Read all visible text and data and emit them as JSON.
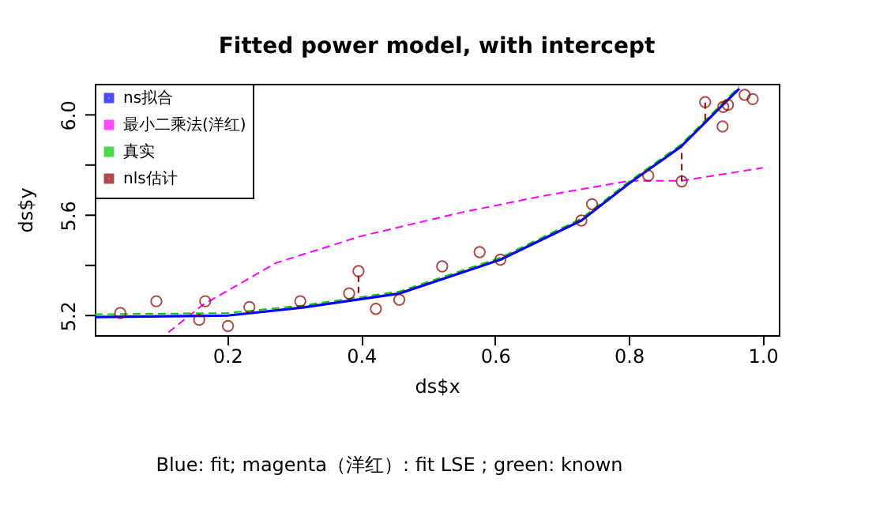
{
  "chart_data": {
    "type": "line",
    "title": "Fitted power model, with intercept",
    "xlabel": "ds$x",
    "ylabel": "ds$y",
    "annotations": [
      "Blue: fit; magenta（洋红）: fit LSE ; green: known"
    ],
    "xlim": [
      0.002,
      1.024
    ],
    "ylim": [
      5.122,
      6.124
    ],
    "xticks": [
      0.2,
      0.4,
      0.6,
      0.8,
      "1.0"
    ],
    "yticks": [
      5.2,
      {
        "value": 5.4,
        "label": null
      },
      5.6,
      {
        "value": 5.8,
        "label": null
      },
      "6.0"
    ],
    "grid": false,
    "legend": "top left",
    "series": [
      {
        "name": "ns拟合",
        "line_style": "solid",
        "color": "#0000ff",
        "x": [
          0.002,
          0.2,
          0.312,
          0.457,
          0.608,
          0.729,
          0.8,
          0.878,
          0.941,
          0.965
        ],
        "values": [
          5.194,
          5.2,
          5.232,
          5.288,
          5.423,
          5.579,
          5.726,
          5.874,
          6.042,
          6.105
        ]
      },
      {
        "name": "最小二乘法(洋红)",
        "line_style": "dashed",
        "color": "#ff00ff",
        "x": [
          0.112,
          0.163,
          0.273,
          0.399,
          0.548,
          0.666,
          0.8,
          0.878,
          1.0
        ],
        "values": [
          5.133,
          5.242,
          5.41,
          5.516,
          5.61,
          5.674,
          5.737,
          5.737,
          5.789
        ]
      },
      {
        "name": "真实",
        "line_style": "dashed",
        "color": "#00cc00",
        "x": [
          0.002,
          0.2,
          0.312,
          0.457,
          0.608,
          0.729,
          0.8,
          0.878,
          0.941,
          0.965
        ],
        "values": [
          5.205,
          5.21,
          5.24,
          5.296,
          5.431,
          5.587,
          5.734,
          5.882,
          6.05,
          6.113
        ]
      },
      {
        "name": "nls估计",
        "type": "scatter",
        "marker": "circle",
        "color": "#8b0000",
        "x": [
          0.04,
          0.094,
          0.158,
          0.167,
          0.201,
          0.233,
          0.309,
          0.382,
          0.396,
          0.422,
          0.457,
          0.521,
          0.577,
          0.608,
          0.729,
          0.745,
          0.829,
          0.879,
          0.914,
          0.94,
          0.941,
          0.948,
          0.973,
          0.985
        ],
        "values": [
          5.21,
          5.257,
          5.183,
          5.257,
          5.158,
          5.234,
          5.257,
          5.288,
          5.377,
          5.227,
          5.263,
          5.396,
          5.453,
          5.423,
          5.579,
          5.644,
          5.758,
          5.735,
          6.051,
          5.954,
          6.032,
          6.04,
          6.08,
          6.063
        ],
        "errors": [
          null,
          null,
          null,
          null,
          null,
          null,
          null,
          null,
          [
            5.29,
            5.377
          ],
          null,
          null,
          null,
          null,
          null,
          null,
          null,
          null,
          [
            5.735,
            5.87
          ],
          [
            5.98,
            6.051
          ],
          null,
          null,
          null,
          null,
          null
        ]
      }
    ]
  }
}
